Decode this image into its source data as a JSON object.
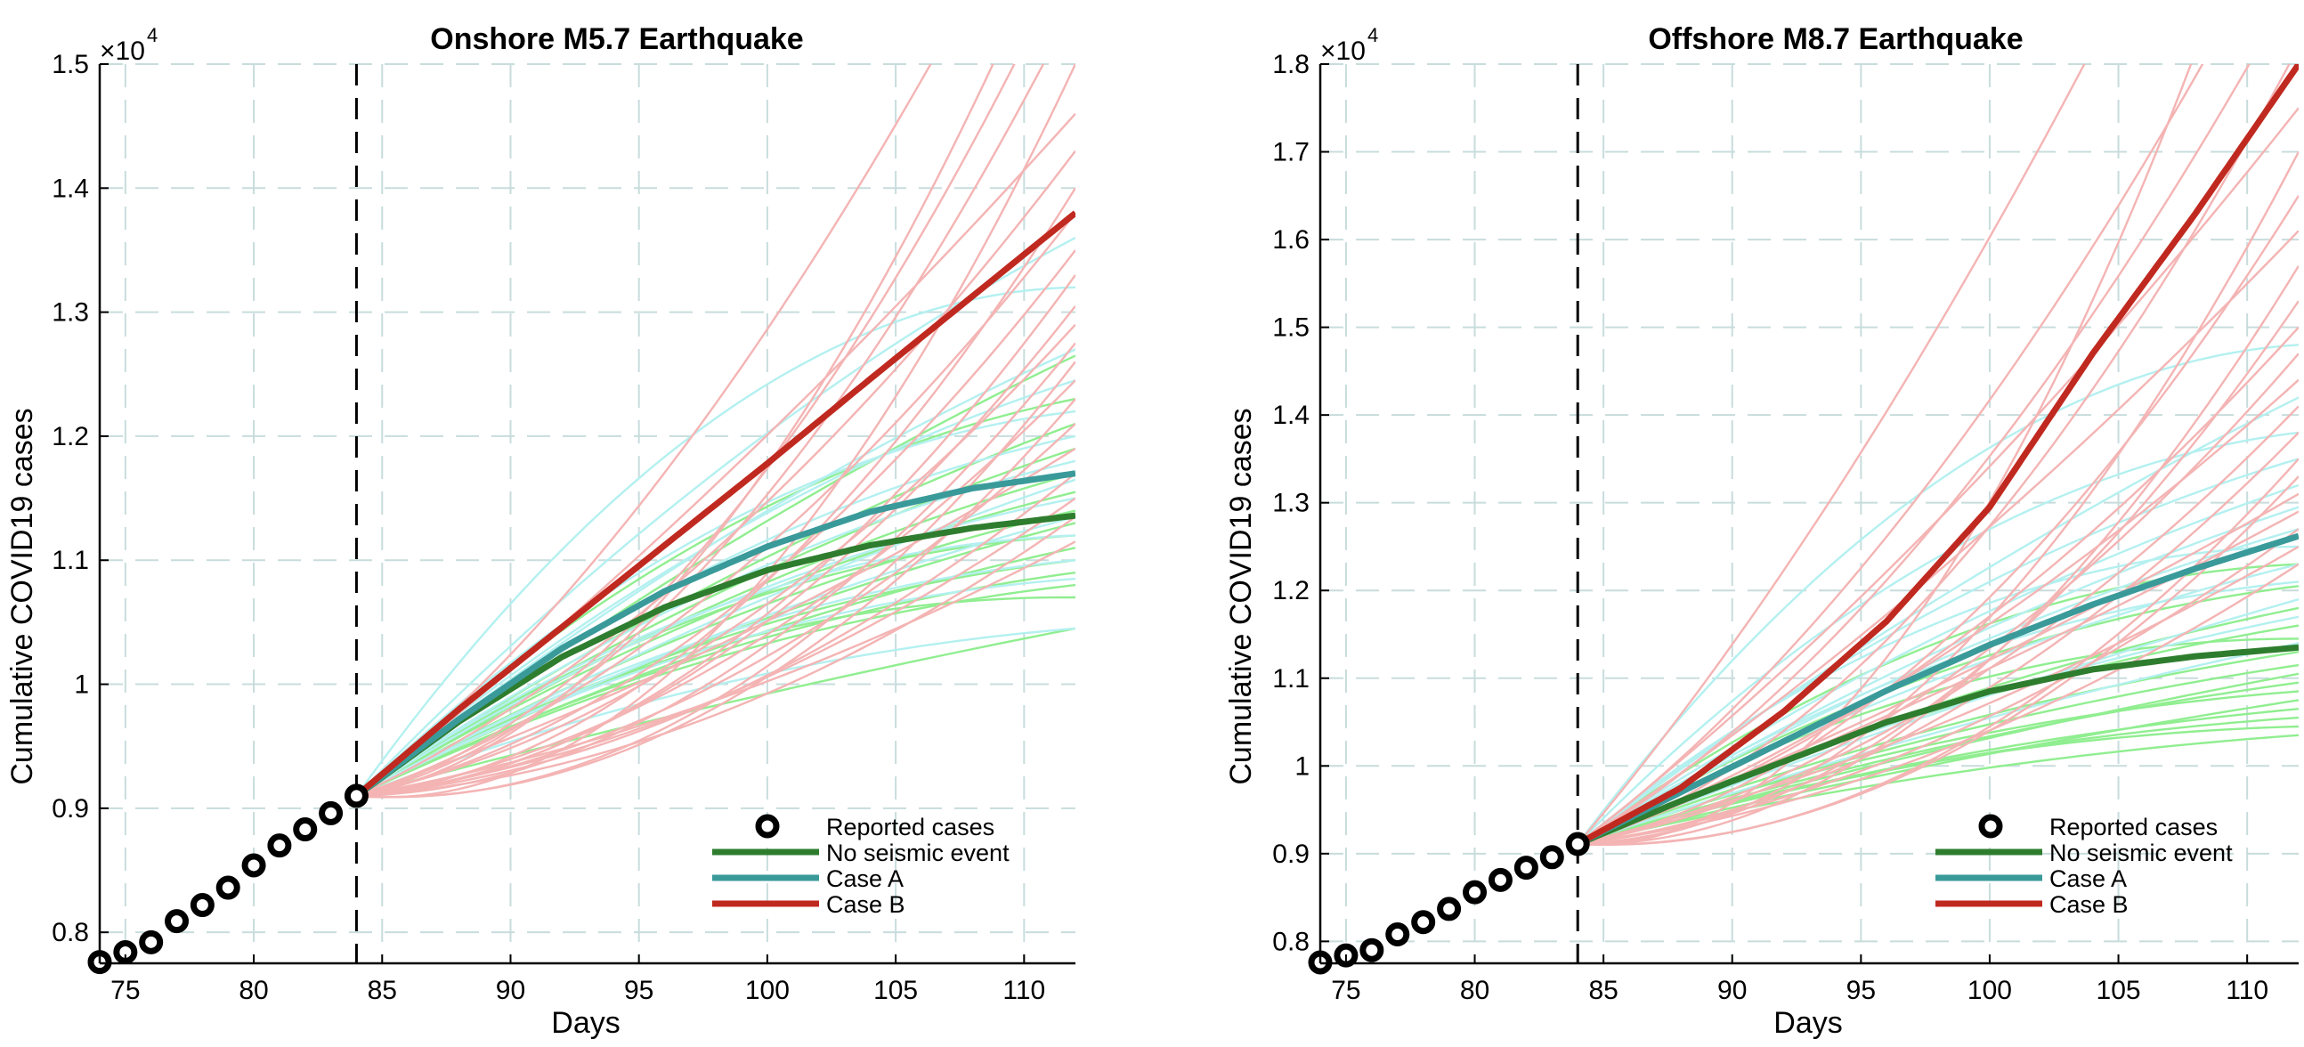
{
  "chart_data": [
    {
      "type": "line",
      "title": "Onshore M5.7 Earthquake",
      "xlabel": "Days",
      "ylabel": "Cumulative COVID19 cases",
      "y_exponent_label": "×10",
      "y_exponent": "4",
      "xlim": [
        74,
        112
      ],
      "ylim": [
        0.775,
        1.5
      ],
      "y_scale": 10000,
      "xticks": [
        75,
        80,
        85,
        90,
        95,
        100,
        105,
        110
      ],
      "yticks": [
        0.8,
        0.9,
        1,
        1.1,
        1.2,
        1.3,
        1.4,
        1.5
      ],
      "ytick_labels": [
        "0.8",
        "0.9",
        "1",
        "1.1",
        "1.2",
        "1.3",
        "1.4",
        "1.5"
      ],
      "grid": true,
      "vline_x": 84,
      "legend_position": "bottom-right",
      "legend": [
        "Reported cases",
        "No seismic event",
        "Case A",
        "Case B"
      ],
      "reported": {
        "name": "Reported cases",
        "x": [
          74,
          75,
          76,
          77,
          78,
          79,
          80,
          81,
          82,
          83,
          84
        ],
        "y": [
          7760,
          7840,
          7920,
          8090,
          8220,
          8360,
          8540,
          8700,
          8830,
          8960,
          9100
        ]
      },
      "series": [
        {
          "name": "No seismic event",
          "color": "#2e7d2e",
          "x": [
            84,
            88,
            92,
            96,
            100,
            104,
            108,
            112
          ],
          "y": [
            9100,
            9700,
            10220,
            10620,
            10920,
            11120,
            11260,
            11360
          ]
        },
        {
          "name": "Case A",
          "color": "#3a9a9a",
          "x": [
            84,
            88,
            92,
            96,
            100,
            104,
            108,
            112
          ],
          "y": [
            9100,
            9720,
            10290,
            10750,
            11110,
            11390,
            11580,
            11700
          ]
        },
        {
          "name": "Case B",
          "color": "#c0291f",
          "x": [
            84,
            88,
            92,
            96,
            100,
            104,
            108,
            112
          ],
          "y": [
            9100,
            9800,
            10460,
            11120,
            11780,
            12460,
            13130,
            13800
          ]
        }
      ],
      "ensembles": {
        "green": {
          "color": "#90ee90",
          "end_values": [
            10450,
            10700,
            10800,
            10900,
            11000,
            11100,
            11200,
            11300,
            11400,
            11550,
            11700,
            11900,
            12100,
            12300,
            12650
          ]
        },
        "cyan": {
          "color": "#b4f0f0",
          "end_values": [
            10450,
            10850,
            11000,
            11200,
            11350,
            11500,
            11650,
            11800,
            12000,
            12200,
            12450,
            12700,
            13200,
            13600
          ]
        },
        "pink": {
          "color": "#f4b4b4",
          "end_values": [
            11150,
            11350,
            11500,
            11700,
            11900,
            12100,
            12300,
            12450,
            12600,
            12750,
            12900,
            13050,
            13300,
            13500,
            13800,
            14000,
            14300,
            14600,
            15000,
            15500,
            16000,
            16500,
            17200
          ]
        }
      }
    },
    {
      "type": "line",
      "title": "Offshore M8.7 Earthquake",
      "xlabel": "Days",
      "ylabel": "Cumulative COVID19 cases",
      "y_exponent_label": "×10",
      "y_exponent": "4",
      "xlim": [
        74,
        112
      ],
      "ylim": [
        0.775,
        1.8
      ],
      "y_scale": 10000,
      "xticks": [
        75,
        80,
        85,
        90,
        95,
        100,
        105,
        110
      ],
      "yticks": [
        0.8,
        0.9,
        1,
        1.1,
        1.2,
        1.3,
        1.4,
        1.5,
        1.6,
        1.7,
        1.8
      ],
      "ytick_labels": [
        "0.8",
        "0.9",
        "1",
        "1.1",
        "1.2",
        "1.3",
        "1.4",
        "1.5",
        "1.6",
        "1.7",
        "1.8"
      ],
      "grid": true,
      "vline_x": 84,
      "legend_position": "bottom-right",
      "legend": [
        "Reported cases",
        "No seismic event",
        "Case A",
        "Case B"
      ],
      "reported": {
        "name": "Reported cases",
        "x": [
          74,
          75,
          76,
          77,
          78,
          79,
          80,
          81,
          82,
          83,
          84
        ],
        "y": [
          7760,
          7840,
          7900,
          8080,
          8220,
          8370,
          8560,
          8700,
          8840,
          8960,
          9110
        ]
      },
      "series": [
        {
          "name": "No seismic event",
          "color": "#2e7d2e",
          "x": [
            84,
            88,
            92,
            96,
            100,
            104,
            108,
            112
          ],
          "y": [
            9110,
            9600,
            10050,
            10500,
            10850,
            11100,
            11250,
            11350
          ]
        },
        {
          "name": "Case A",
          "color": "#3a9a9a",
          "x": [
            84,
            88,
            92,
            96,
            100,
            104,
            108,
            112
          ],
          "y": [
            9110,
            9700,
            10280,
            10860,
            11380,
            11840,
            12250,
            12620
          ]
        },
        {
          "name": "Case B",
          "color": "#c0291f",
          "x": [
            84,
            88,
            92,
            96,
            100,
            104,
            108,
            112
          ],
          "y": [
            9110,
            9750,
            10620,
            11650,
            12950,
            14700,
            16300,
            18000
          ]
        }
      ],
      "ensembles": {
        "green": {
          "color": "#90ee90",
          "end_values": [
            10350,
            10450,
            10550,
            10650,
            10750,
            10850,
            10950,
            11050,
            11150,
            11300,
            11450,
            11600,
            11800,
            12050,
            12300
          ]
        },
        "cyan": {
          "color": "#b4f0f0",
          "end_values": [
            11400,
            11700,
            11900,
            12100,
            12300,
            12500,
            12700,
            12950,
            13200,
            13500,
            13800,
            14200,
            14800
          ]
        },
        "pink": {
          "color": "#f4b4b4",
          "end_values": [
            12300,
            12500,
            12700,
            12900,
            13100,
            13300,
            13500,
            13800,
            14100,
            14400,
            14700,
            15000,
            15300,
            15700,
            16100,
            16500,
            17000,
            17500,
            18200,
            19000,
            20000,
            21500,
            23000
          ]
        }
      }
    }
  ]
}
